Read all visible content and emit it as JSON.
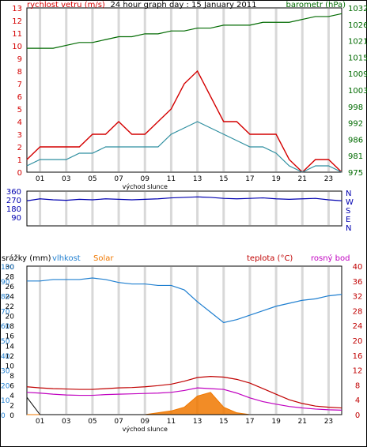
{
  "colors": {
    "wind": "#d40000",
    "wind_avg": "#2f8fa0",
    "pressure": "#006a00",
    "direction": "#0000b0",
    "humidity": "#1f7fd0",
    "temp": "#c00000",
    "dew": "#c000c0",
    "solar": "#f07800",
    "rain": "#000000",
    "frame": "#000000",
    "grid": "#d8d8d8"
  },
  "x_ticks": [
    "01",
    "03",
    "05",
    "07",
    "09",
    "11",
    "13",
    "15",
    "17",
    "19",
    "21",
    "23"
  ],
  "sunrise_label": "východ slunce",
  "sunset_label": "východ slunce",
  "chart_data": [
    {
      "type": "line",
      "title": "24 hour graph day : 15 January 2011",
      "left_label": "rychlost vetru (m/s)",
      "right_label": "barometr (hPa)",
      "left_ticks": [
        "0",
        "1",
        "2",
        "3",
        "4",
        "5",
        "6",
        "7",
        "8",
        "9",
        "10",
        "11",
        "12",
        "13"
      ],
      "right_ticks": [
        "975",
        "981",
        "986",
        "992",
        "998",
        "1003",
        "1009",
        "1015",
        "1021",
        "1026",
        "1032"
      ],
      "ylim_left": [
        0,
        13
      ],
      "ylim_right": [
        975,
        1032
      ],
      "x": [
        0,
        1,
        2,
        3,
        4,
        5,
        6,
        7,
        8,
        9,
        10,
        11,
        12,
        13,
        14,
        15,
        16,
        17,
        18,
        19,
        20,
        21,
        22,
        23,
        24
      ],
      "series": [
        {
          "key": "wind_gust",
          "values": [
            1,
            2,
            2,
            2,
            2,
            3,
            3,
            4,
            3,
            3,
            4,
            5,
            7,
            8,
            6,
            4,
            4,
            3,
            3,
            3,
            1,
            0,
            1,
            1,
            0
          ]
        },
        {
          "key": "wind_avg",
          "values": [
            0.5,
            1,
            1,
            1,
            1.5,
            1.5,
            2,
            2,
            2,
            2,
            2,
            3,
            3.5,
            4,
            3.5,
            3,
            2.5,
            2,
            2,
            1.5,
            0.5,
            0,
            0.5,
            0.5,
            0
          ]
        },
        {
          "key": "pressure",
          "values": [
            1018,
            1018,
            1018,
            1019,
            1020,
            1020,
            1021,
            1022,
            1022,
            1023,
            1023,
            1024,
            1024,
            1025,
            1025,
            1026,
            1026,
            1026,
            1027,
            1027,
            1027,
            1028,
            1029,
            1029,
            1030
          ]
        }
      ]
    },
    {
      "type": "line",
      "left_ticks": [
        "90",
        "180",
        "270",
        "360"
      ],
      "right_ticks": [
        "N",
        "W",
        "S",
        "E",
        "N"
      ],
      "ylim": [
        0,
        360
      ],
      "x": [
        0,
        1,
        2,
        3,
        4,
        5,
        6,
        7,
        8,
        9,
        10,
        11,
        12,
        13,
        14,
        15,
        16,
        17,
        18,
        19,
        20,
        21,
        22,
        23,
        24
      ],
      "series": [
        {
          "key": "direction",
          "values": [
            260,
            280,
            270,
            265,
            275,
            270,
            280,
            275,
            270,
            275,
            280,
            290,
            295,
            300,
            295,
            285,
            280,
            285,
            290,
            280,
            275,
            280,
            285,
            270,
            260
          ]
        }
      ]
    },
    {
      "type": "line",
      "left_label_rain": "srážky (mm)",
      "left_label_hum": "vlhkost",
      "left_label_solar": "Solar",
      "right_label_temp": "teplota (°C)",
      "right_label_dew": "rosný bod",
      "left_ticks_rain": [
        "0",
        "2",
        "4",
        "6",
        "8",
        "10",
        "12",
        "14",
        "16",
        "18",
        "20",
        "22",
        "24",
        "26",
        "28",
        "30"
      ],
      "left_ticks_hum": [
        "0",
        "10",
        "20",
        "30",
        "40",
        "50",
        "60",
        "70",
        "80",
        "90",
        "100"
      ],
      "right_ticks": [
        "0",
        "4",
        "8",
        "12",
        "16",
        "20",
        "24",
        "28",
        "32",
        "36",
        "40"
      ],
      "ylim_left": [
        0,
        100
      ],
      "ylim_right": [
        0,
        40
      ],
      "x": [
        0,
        1,
        2,
        3,
        4,
        5,
        6,
        7,
        8,
        9,
        10,
        11,
        12,
        13,
        14,
        15,
        16,
        17,
        18,
        19,
        20,
        21,
        22,
        23,
        24
      ],
      "series": [
        {
          "key": "humidity",
          "values": [
            90,
            90,
            91,
            91,
            91,
            92,
            91,
            89,
            88,
            88,
            87,
            87,
            84,
            76,
            69,
            62,
            64,
            67,
            70,
            73,
            75,
            77,
            78,
            80,
            81
          ]
        },
        {
          "key": "temp",
          "values": [
            7.5,
            7.2,
            7,
            6.9,
            6.8,
            6.8,
            7,
            7.2,
            7.3,
            7.5,
            7.8,
            8.2,
            9,
            10,
            10.3,
            10.1,
            9.5,
            8.5,
            7,
            5.5,
            4,
            3,
            2.3,
            2,
            1.8
          ]
        },
        {
          "key": "dew",
          "values": [
            6,
            5.8,
            5.5,
            5.3,
            5.2,
            5.2,
            5.4,
            5.5,
            5.6,
            5.7,
            5.8,
            6,
            6.5,
            7.2,
            7,
            6.8,
            5.8,
            4.5,
            3.5,
            2.8,
            2.2,
            1.8,
            1.5,
            1.3,
            1.2
          ]
        },
        {
          "key": "solar",
          "values": [
            0,
            0,
            0,
            0,
            0,
            0,
            0,
            0,
            0,
            0,
            0.5,
            1,
            2,
            5,
            6,
            2,
            0.5,
            0,
            0,
            0,
            0,
            0,
            0,
            0,
            0
          ]
        },
        {
          "key": "rain",
          "values": [
            3.5,
            0,
            0,
            0,
            0,
            0,
            0,
            0,
            0,
            0,
            0,
            0,
            0,
            0,
            0,
            0,
            0,
            0,
            0,
            0,
            0,
            0,
            0,
            0,
            0
          ]
        }
      ]
    }
  ]
}
